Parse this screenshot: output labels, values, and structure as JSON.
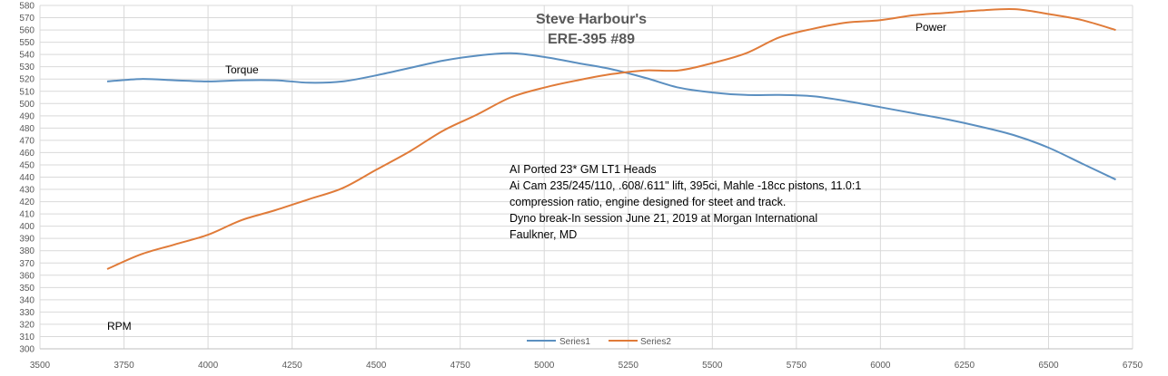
{
  "chart_data": {
    "type": "line",
    "title": [
      "Steve Harbour's",
      "ERE-395 #89"
    ],
    "xlabel": "",
    "ylabel": "",
    "xlim": [
      3500,
      6750
    ],
    "ylim": [
      300,
      580
    ],
    "x_ticks": [
      3500,
      3750,
      4000,
      4250,
      4500,
      4750,
      5000,
      5250,
      5500,
      5750,
      6000,
      6250,
      6500,
      6750
    ],
    "y_ticks": [
      300,
      310,
      320,
      330,
      340,
      350,
      360,
      370,
      380,
      390,
      400,
      410,
      420,
      430,
      440,
      450,
      460,
      470,
      480,
      490,
      500,
      510,
      520,
      530,
      540,
      550,
      560,
      570,
      580
    ],
    "grid": true,
    "legend_position": "bottom",
    "series": [
      {
        "name": "Series1",
        "color": "#5b8fc0",
        "label": "Torque",
        "x": [
          3700,
          3800,
          3900,
          4000,
          4100,
          4200,
          4300,
          4400,
          4500,
          4600,
          4700,
          4800,
          4900,
          5000,
          5100,
          5200,
          5300,
          5400,
          5500,
          5600,
          5700,
          5800,
          5900,
          6000,
          6100,
          6200,
          6300,
          6400,
          6500,
          6600,
          6700
        ],
        "y": [
          518,
          520,
          519,
          518,
          519,
          519,
          517,
          518,
          523,
          529,
          535,
          539,
          541,
          538,
          533,
          528,
          521,
          513,
          509,
          507,
          507,
          506,
          502,
          497,
          492,
          487,
          481,
          474,
          464,
          451,
          438
        ]
      },
      {
        "name": "Series2",
        "color": "#e07b39",
        "label": "Power",
        "x": [
          3700,
          3800,
          3900,
          4000,
          4100,
          4200,
          4300,
          4400,
          4500,
          4600,
          4700,
          4800,
          4900,
          5000,
          5100,
          5200,
          5300,
          5400,
          5500,
          5600,
          5700,
          5800,
          5900,
          6000,
          6100,
          6200,
          6300,
          6400,
          6500,
          6600,
          6700
        ],
        "y": [
          365,
          377,
          385,
          393,
          405,
          413,
          422,
          431,
          446,
          461,
          478,
          491,
          505,
          513,
          519,
          524,
          527,
          527,
          533,
          541,
          554,
          561,
          566,
          568,
          572,
          574,
          576,
          577,
          573,
          568,
          560
        ]
      }
    ],
    "annotations": [
      "Torque",
      "Power",
      "RPM",
      "AI Ported 23* GM LT1 Heads",
      "Ai Cam 235/245/110,  .608/.611\" lift, 395ci, Mahle -18cc pistons, 11.0:1",
      "compression ratio, engine designed for steet and track.",
      "Dyno break-In session June 21, 2019  at Morgan International",
      "Faulkner, MD"
    ]
  }
}
